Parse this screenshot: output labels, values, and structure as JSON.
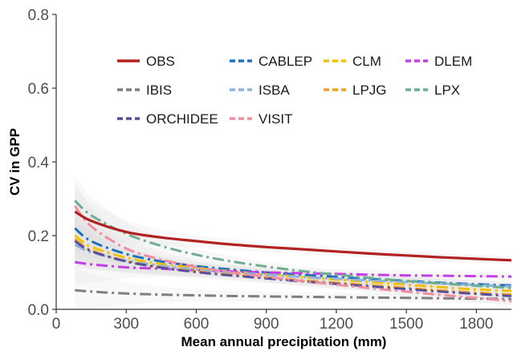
{
  "chart_data": {
    "type": "line",
    "xlabel": "Mean annual precipitation  (mm)",
    "ylabel": "CV in GPP",
    "xlim": [
      0,
      1950
    ],
    "ylim": [
      0,
      0.8
    ],
    "x_ticks": [
      "0",
      "300",
      "600",
      "900",
      "1200",
      "1500",
      "1800"
    ],
    "y_ticks": [
      "0.0",
      "0.2",
      "0.4",
      "0.6",
      "0.8"
    ],
    "grid": false,
    "legend_position": "top-center",
    "x": [
      80,
      150,
      300,
      450,
      600,
      750,
      900,
      1050,
      1200,
      1350,
      1500,
      1650,
      1800,
      1950
    ],
    "series": [
      {
        "name": "OBS",
        "color": "#b22222",
        "dash": "solid",
        "values": [
          0.265,
          0.24,
          0.21,
          0.195,
          0.185,
          0.176,
          0.169,
          0.163,
          0.157,
          0.151,
          0.146,
          0.141,
          0.137,
          0.133
        ]
      },
      {
        "name": "CABLEP",
        "color": "#1f6fbf",
        "dash": "dashdot",
        "values": [
          0.22,
          0.185,
          0.15,
          0.13,
          0.117,
          0.108,
          0.1,
          0.094,
          0.088,
          0.082,
          0.077,
          0.072,
          0.068,
          0.065
        ]
      },
      {
        "name": "CLM",
        "color": "#f2c100",
        "dash": "dashdot",
        "values": [
          0.2,
          0.17,
          0.14,
          0.123,
          0.112,
          0.103,
          0.095,
          0.088,
          0.081,
          0.074,
          0.067,
          0.06,
          0.054,
          0.05
        ]
      },
      {
        "name": "DLEM",
        "color": "#c43ee6",
        "dash": "dashdot",
        "values": [
          0.128,
          0.122,
          0.114,
          0.11,
          0.106,
          0.103,
          0.1,
          0.098,
          0.096,
          0.094,
          0.092,
          0.091,
          0.09,
          0.089
        ]
      },
      {
        "name": "IBIS",
        "color": "#7f7f7f",
        "dash": "dashdot",
        "values": [
          0.052,
          0.048,
          0.043,
          0.04,
          0.038,
          0.036,
          0.035,
          0.034,
          0.033,
          0.032,
          0.031,
          0.03,
          0.029,
          0.028
        ]
      },
      {
        "name": "ISBA",
        "color": "#8fb3dc",
        "dash": "dashdot",
        "values": [
          0.175,
          0.155,
          0.132,
          0.118,
          0.108,
          0.1,
          0.094,
          0.088,
          0.083,
          0.078,
          0.074,
          0.07,
          0.066,
          0.062
        ]
      },
      {
        "name": "LPJG",
        "color": "#f0a020",
        "dash": "dashdot",
        "values": [
          0.19,
          0.16,
          0.13,
          0.114,
          0.103,
          0.094,
          0.086,
          0.079,
          0.072,
          0.065,
          0.058,
          0.051,
          0.045,
          0.04
        ]
      },
      {
        "name": "LPX",
        "color": "#6fae8f",
        "dash": "dashdot",
        "values": [
          0.295,
          0.255,
          0.205,
          0.172,
          0.148,
          0.13,
          0.116,
          0.104,
          0.094,
          0.085,
          0.077,
          0.07,
          0.064,
          0.058
        ]
      },
      {
        "name": "ORCHIDEE",
        "color": "#5a4e9c",
        "dash": "dashdot",
        "values": [
          0.185,
          0.158,
          0.13,
          0.113,
          0.101,
          0.092,
          0.084,
          0.076,
          0.069,
          0.062,
          0.055,
          0.048,
          0.042,
          0.036
        ]
      },
      {
        "name": "VISIT",
        "color": "#f28ca0",
        "dash": "dashdot",
        "values": [
          0.28,
          0.225,
          0.165,
          0.135,
          0.115,
          0.1,
          0.088,
          0.077,
          0.067,
          0.057,
          0.048,
          0.039,
          0.031,
          0.022
        ]
      }
    ],
    "legend_layout": [
      [
        "OBS",
        "CABLEP",
        "CLM",
        "DLEM"
      ],
      [
        "IBIS",
        "ISBA",
        "LPJG",
        "LPX"
      ],
      [
        "ORCHIDEE",
        "VISIT"
      ]
    ],
    "confidence_band_color": "#d9d9d9"
  }
}
